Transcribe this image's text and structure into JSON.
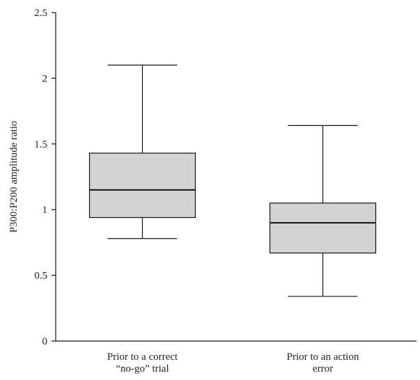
{
  "chart_data": {
    "type": "box",
    "ylabel": "P300:P200 amplitude ratio",
    "ylim": [
      0,
      2.5
    ],
    "yticks": [
      {
        "value": 0,
        "label": "0"
      },
      {
        "value": 0.5,
        "label": "0.5"
      },
      {
        "value": 1,
        "label": "1"
      },
      {
        "value": 1.5,
        "label": "1.5"
      },
      {
        "value": 2,
        "label": "2"
      },
      {
        "value": 2.5,
        "label": "2.5"
      }
    ],
    "categories": [
      {
        "lines": [
          "Prior to a correct",
          "“no-go” trial"
        ]
      },
      {
        "lines": [
          "Prior to an action",
          "error"
        ]
      }
    ],
    "boxes": [
      {
        "min": 0.78,
        "q1": 0.94,
        "median": 1.15,
        "q3": 1.43,
        "max": 2.1
      },
      {
        "min": 0.34,
        "q1": 0.67,
        "median": 0.9,
        "q3": 1.05,
        "max": 1.64
      }
    ],
    "colors": {
      "box_fill": "#d3d3d3",
      "stroke": "#111111"
    }
  }
}
